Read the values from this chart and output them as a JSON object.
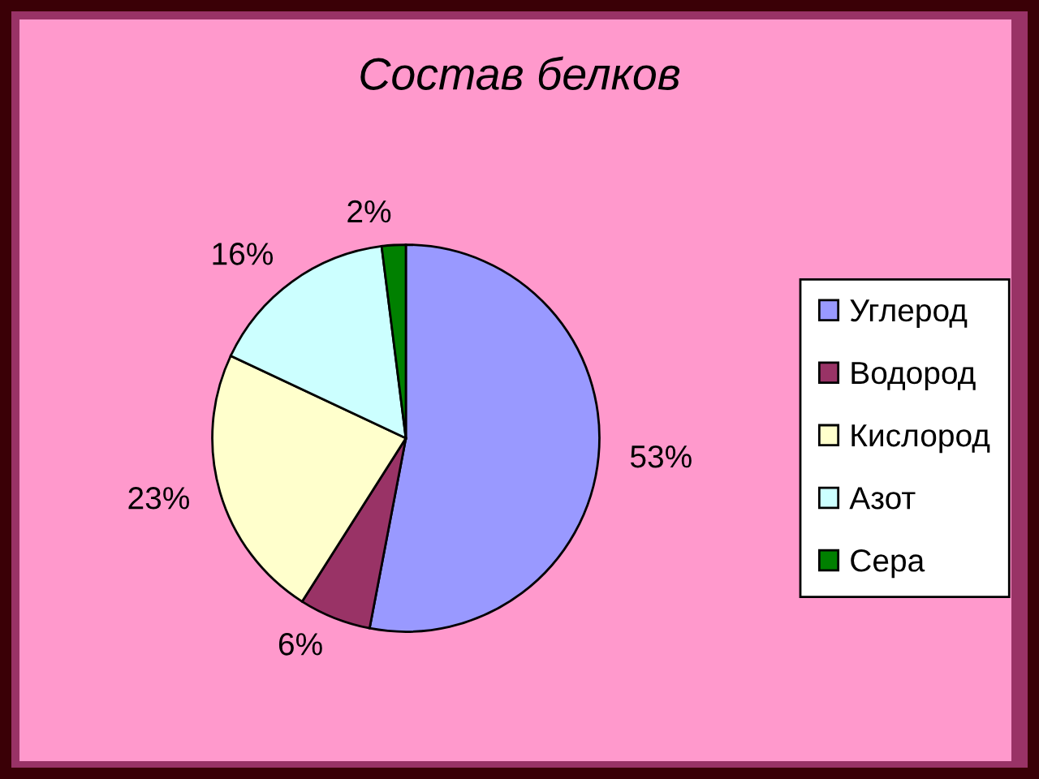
{
  "chart_data": {
    "type": "pie",
    "title": "Состав белков",
    "categories": [
      "Углерод",
      "Водород",
      "Кислород",
      "Азот",
      "Сера"
    ],
    "values": [
      53,
      6,
      23,
      16,
      2
    ],
    "colors": [
      "#9999ff",
      "#993366",
      "#ffffcc",
      "#ccffff",
      "#008000"
    ],
    "value_labels": [
      "53%",
      "6%",
      "23%",
      "16%",
      "2%"
    ],
    "legend": "right"
  }
}
